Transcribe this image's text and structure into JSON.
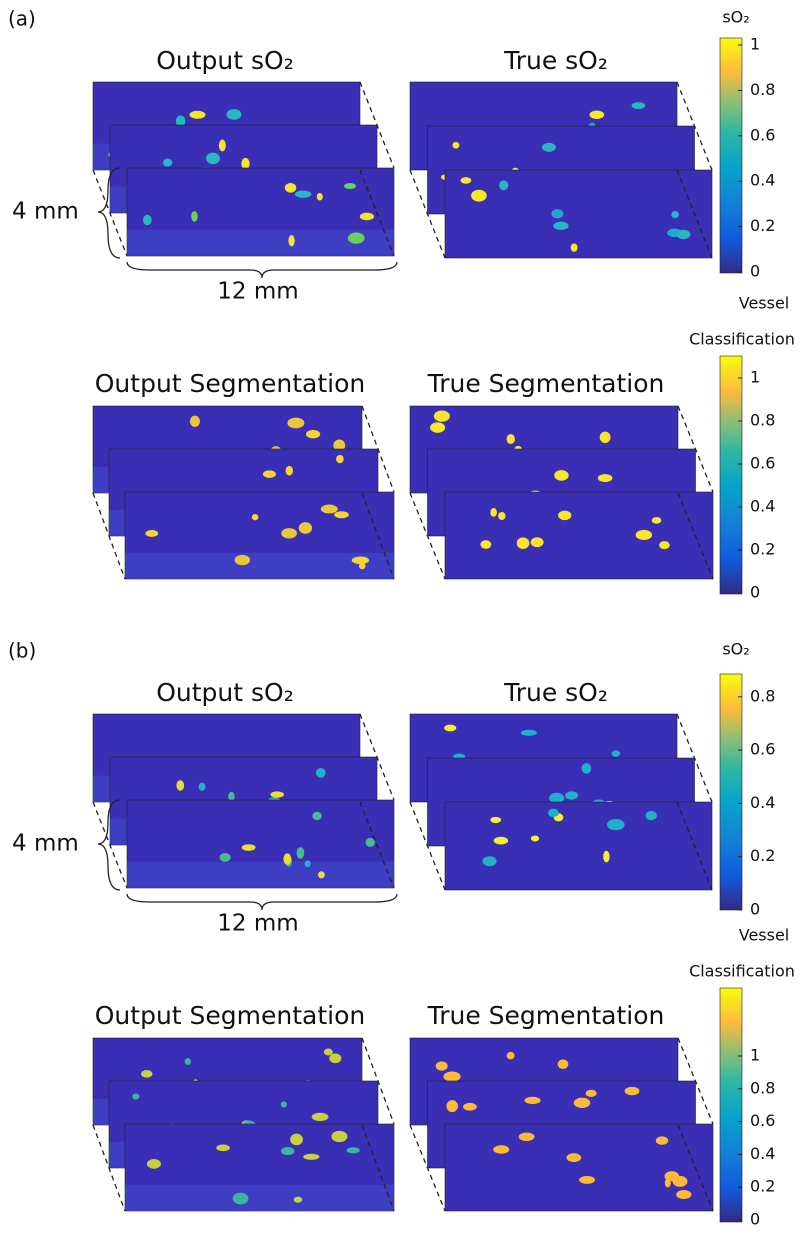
{
  "panels": [
    {
      "label": "(a)",
      "row1": {
        "titles": [
          "Output sO₂",
          "True sO₂"
        ],
        "colorbar_label": "sO₂",
        "colorbar_ticks": [
          0,
          0.2,
          0.4,
          0.6,
          0.8,
          1
        ]
      },
      "row2": {
        "titles": [
          "Output Segmentation",
          "True Segmentation"
        ],
        "colorbar_label": [
          "Vessel",
          "Classification"
        ],
        "colorbar_ticks": [
          0,
          0.2,
          0.4,
          0.6,
          0.8,
          1
        ]
      },
      "scale": {
        "depth": "4 mm",
        "width": "12 mm"
      }
    },
    {
      "label": "(b)",
      "row1": {
        "titles": [
          "Output sO₂",
          "True sO₂"
        ],
        "colorbar_label": "sO₂",
        "colorbar_ticks": [
          0,
          0.2,
          0.4,
          0.6,
          0.8
        ]
      },
      "row2": {
        "titles": [
          "Output Segmentation",
          "True Segmentation"
        ],
        "colorbar_label": [
          "Vessel",
          "Classification"
        ],
        "colorbar_ticks": [
          0,
          0.2,
          0.4,
          0.6,
          0.8,
          1
        ]
      },
      "scale": {
        "depth": "4 mm",
        "width": "12 mm"
      }
    }
  ]
}
